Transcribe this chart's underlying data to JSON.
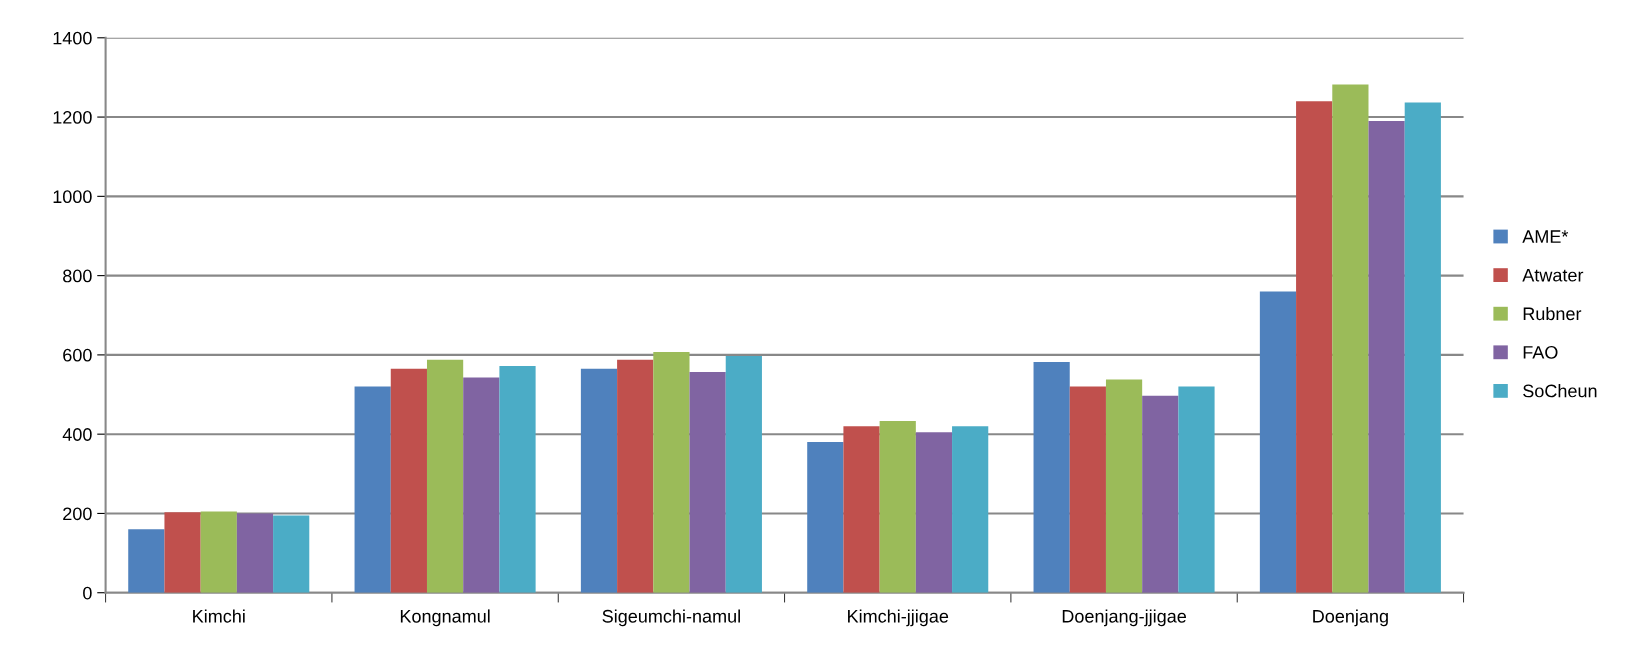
{
  "chart_data": {
    "type": "bar",
    "categories": [
      "Kimchi",
      "Kongnamul",
      "Sigeumchi-namul",
      "Kimchi-jjigae",
      "Doenjang-jjigae",
      "Doenjang"
    ],
    "series": [
      {
        "name": "AME*",
        "color": "#4f81bd",
        "values": [
          160,
          520,
          565,
          380,
          582,
          760
        ]
      },
      {
        "name": "Atwater",
        "color": "#c0504d",
        "values": [
          203,
          565,
          588,
          420,
          520,
          1240
        ]
      },
      {
        "name": "Rubner",
        "color": "#9bbb59",
        "values": [
          205,
          588,
          607,
          433,
          538,
          1282
        ]
      },
      {
        "name": "FAO",
        "color": "#8064a2",
        "values": [
          200,
          543,
          557,
          405,
          497,
          1190
        ]
      },
      {
        "name": "SoCheun",
        "color": "#4bacc6",
        "values": [
          195,
          572,
          597,
          420,
          520,
          1237
        ]
      }
    ],
    "ylim": [
      0,
      1400
    ],
    "yticks": [
      0,
      200,
      400,
      600,
      800,
      1000,
      1200,
      1400
    ],
    "grid": "y",
    "legend": "right"
  }
}
